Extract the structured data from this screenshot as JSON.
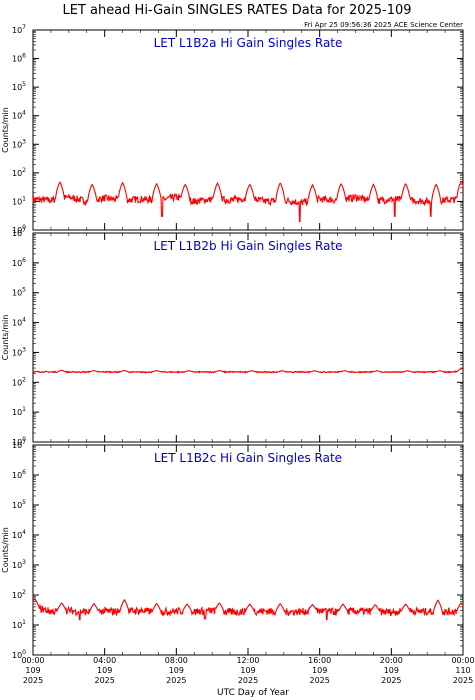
{
  "title": "LET ahead Hi-Gain SINGLES RATES Data for 2025-109",
  "timestamp": "Fri Apr 25 09:56:36 2025 ACE Science Center",
  "ylabel": "Counts/min",
  "xlabel": "UTC Day of Year",
  "colors": {
    "series": "#ff0000",
    "panel_title": "#0000cc",
    "axis": "#000000"
  },
  "chart_data": [
    {
      "type": "line",
      "title": "LET L1B2a Hi Gain Singles Rate",
      "y_scale": "log",
      "ylim": [
        1,
        10000000
      ],
      "xlim": [
        0,
        24
      ],
      "x_unit": "hours UTC",
      "baseline": 11,
      "series": [
        {
          "x": [
            0,
            1,
            2,
            3,
            4,
            5,
            6,
            7,
            8,
            9,
            10,
            11,
            12,
            13,
            14,
            15,
            16,
            17,
            18,
            19,
            20,
            21,
            22,
            23,
            24
          ],
          "values": [
            12,
            11,
            14,
            10,
            13,
            11,
            12,
            11,
            14,
            10,
            12,
            11,
            13,
            10,
            11,
            9,
            12,
            11,
            14,
            10,
            12,
            11,
            10,
            11,
            12
          ]
        }
      ],
      "spikes": [
        [
          1.5,
          48
        ],
        [
          3.3,
          40
        ],
        [
          5.0,
          46
        ],
        [
          6.9,
          42
        ],
        [
          8.5,
          40
        ],
        [
          10.3,
          44
        ],
        [
          12.1,
          40
        ],
        [
          13.8,
          45
        ],
        [
          15.6,
          38
        ],
        [
          17.2,
          42
        ],
        [
          19.0,
          40
        ],
        [
          20.8,
          42
        ],
        [
          22.5,
          40
        ],
        [
          23.9,
          52
        ]
      ],
      "dips": [
        [
          7.2,
          3
        ],
        [
          14.9,
          2
        ],
        [
          20.2,
          3
        ],
        [
          22.2,
          3
        ]
      ]
    },
    {
      "type": "line",
      "title": "LET L1B2b Hi Gain Singles Rate",
      "y_scale": "log",
      "ylim": [
        1,
        10000000
      ],
      "xlim": [
        0,
        24
      ],
      "x_unit": "hours UTC",
      "baseline": 220,
      "series": [
        {
          "x": [
            0,
            1,
            2,
            3,
            4,
            5,
            6,
            7,
            8,
            9,
            10,
            11,
            12,
            13,
            14,
            15,
            16,
            17,
            18,
            19,
            20,
            21,
            22,
            23,
            24
          ],
          "values": [
            225,
            222,
            220,
            221,
            223,
            220,
            219,
            222,
            220,
            221,
            220,
            222,
            221,
            220,
            219,
            221,
            220,
            222,
            220,
            221,
            220,
            219,
            221,
            220,
            230
          ]
        }
      ],
      "spikes": [
        [
          1.6,
          255
        ],
        [
          3.4,
          248
        ],
        [
          5.1,
          250
        ],
        [
          6.9,
          248
        ],
        [
          8.7,
          246
        ],
        [
          10.4,
          248
        ],
        [
          12.2,
          245
        ],
        [
          13.9,
          246
        ],
        [
          15.7,
          244
        ],
        [
          17.4,
          246
        ],
        [
          19.2,
          245
        ],
        [
          20.9,
          246
        ],
        [
          22.7,
          245
        ],
        [
          23.9,
          290
        ]
      ],
      "dips": []
    },
    {
      "type": "line",
      "title": "LET L1B2c Hi Gain Singles Rate",
      "y_scale": "log",
      "ylim": [
        1,
        10000000
      ],
      "xlim": [
        0,
        24
      ],
      "x_unit": "hours UTC",
      "baseline": 28,
      "series": [
        {
          "x": [
            0,
            1,
            2,
            3,
            4,
            5,
            6,
            7,
            8,
            9,
            10,
            11,
            12,
            13,
            14,
            15,
            16,
            17,
            18,
            19,
            20,
            21,
            22,
            23,
            24
          ],
          "values": [
            40,
            28,
            30,
            27,
            29,
            28,
            30,
            27,
            29,
            28,
            30,
            27,
            28,
            29,
            27,
            28,
            30,
            27,
            29,
            28,
            27,
            29,
            28,
            27,
            30
          ]
        }
      ],
      "spikes": [
        [
          0.1,
          75
        ],
        [
          1.6,
          55
        ],
        [
          3.4,
          52
        ],
        [
          5.1,
          70
        ],
        [
          6.9,
          52
        ],
        [
          8.6,
          50
        ],
        [
          10.4,
          55
        ],
        [
          12.1,
          50
        ],
        [
          13.8,
          52
        ],
        [
          15.6,
          48
        ],
        [
          17.3,
          50
        ],
        [
          19.1,
          48
        ],
        [
          20.8,
          50
        ],
        [
          22.6,
          68
        ],
        [
          23.9,
          55
        ]
      ],
      "dips": [
        [
          2.6,
          15
        ],
        [
          9.6,
          16
        ],
        [
          16.4,
          15
        ]
      ]
    }
  ],
  "y_ticks": [
    {
      "base": "10",
      "exp": "0"
    },
    {
      "base": "10",
      "exp": "1"
    },
    {
      "base": "10",
      "exp": "2"
    },
    {
      "base": "10",
      "exp": "3"
    },
    {
      "base": "10",
      "exp": "4"
    },
    {
      "base": "10",
      "exp": "5"
    },
    {
      "base": "10",
      "exp": "6"
    },
    {
      "base": "10",
      "exp": "7"
    }
  ],
  "x_ticks": [
    {
      "x": 0,
      "time": "00:00",
      "doy": "109",
      "year": "2025"
    },
    {
      "x": 4,
      "time": "04:00",
      "doy": "109",
      "year": "2025"
    },
    {
      "x": 8,
      "time": "08:00",
      "doy": "109",
      "year": "2025"
    },
    {
      "x": 12,
      "time": "12:00",
      "doy": "109",
      "year": "2025"
    },
    {
      "x": 16,
      "time": "16:00",
      "doy": "109",
      "year": "2025"
    },
    {
      "x": 20,
      "time": "20:00",
      "doy": "109",
      "year": "2025"
    },
    {
      "x": 24,
      "time": "00:00",
      "doy": "110",
      "year": "2025"
    }
  ]
}
